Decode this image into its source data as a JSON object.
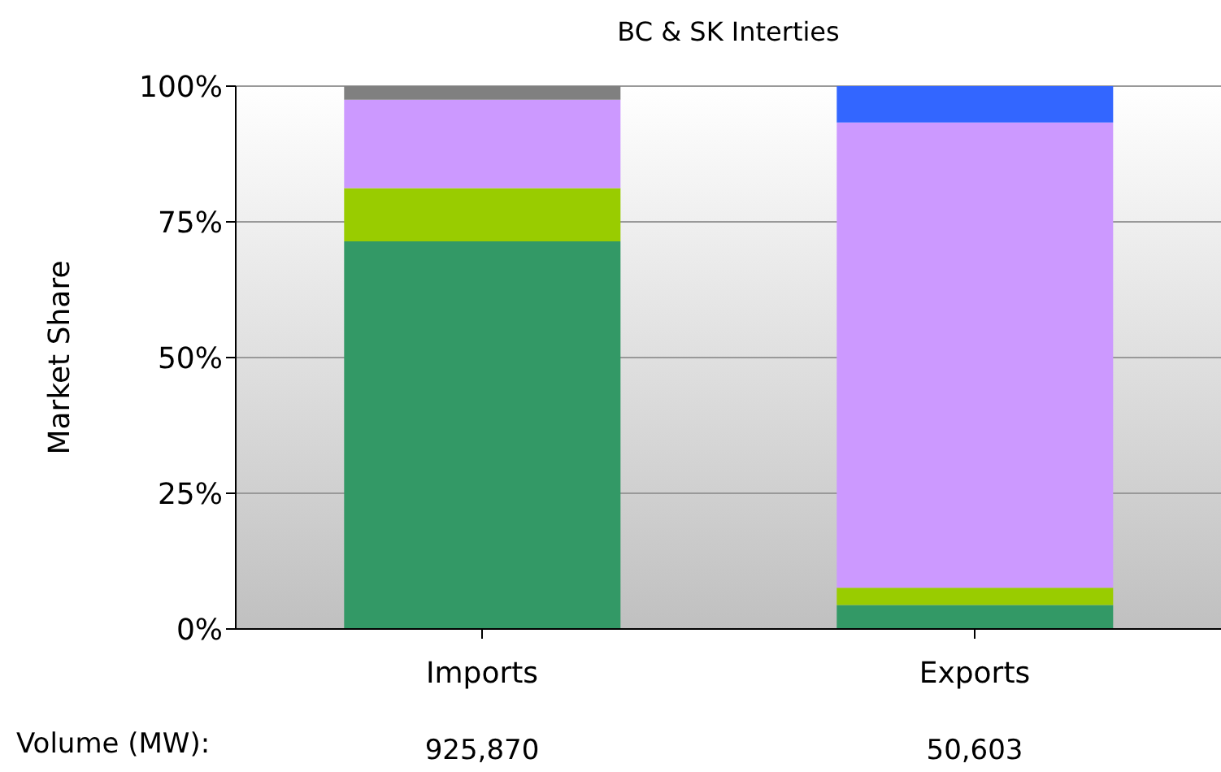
{
  "chart_data": {
    "type": "bar",
    "title": "BC & SK Interties",
    "ylabel": "Market Share",
    "stacked": true,
    "categories": [
      "Imports",
      "Exports"
    ],
    "series": [
      {
        "color": "#339966",
        "values": [
          71.4,
          4.4
        ]
      },
      {
        "color": "#99cc00",
        "values": [
          9.8,
          3.2
        ]
      },
      {
        "color": "#cc99ff",
        "values": [
          16.3,
          85.7
        ]
      },
      {
        "color": "#3366ff",
        "values": [
          0,
          6.7
        ]
      },
      {
        "color": "#808080",
        "values": [
          2.5,
          0
        ]
      }
    ],
    "ylim": [
      0,
      100
    ],
    "yticks": [
      {
        "value": 0,
        "label": "0%"
      },
      {
        "value": 25,
        "label": "25%"
      },
      {
        "value": 50,
        "label": "50%"
      },
      {
        "value": 75,
        "label": "75%"
      },
      {
        "value": 100,
        "label": "100%"
      }
    ],
    "grid": "y",
    "legend": false,
    "annotations": [
      "Volume (MW):",
      "925,870",
      "50,603"
    ]
  }
}
